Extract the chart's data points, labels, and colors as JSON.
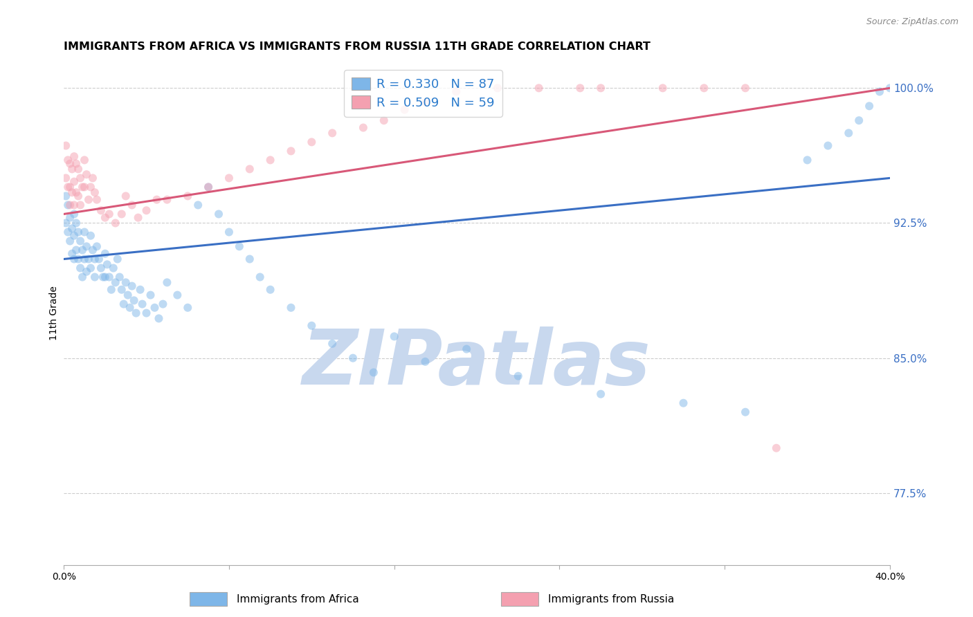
{
  "title": "IMMIGRANTS FROM AFRICA VS IMMIGRANTS FROM RUSSIA 11TH GRADE CORRELATION CHART",
  "source": "Source: ZipAtlas.com",
  "ylabel": "11th Grade",
  "xlim": [
    0.0,
    0.4
  ],
  "ylim": [
    0.735,
    1.015
  ],
  "africa_R": 0.33,
  "africa_N": 87,
  "russia_R": 0.509,
  "russia_N": 59,
  "africa_color": "#7EB6E8",
  "russia_color": "#F4A0B0",
  "africa_line_color": "#3A6FC4",
  "russia_line_color": "#D85878",
  "legend_color": "#2B7BCC",
  "background_color": "#FFFFFF",
  "africa_scatter_x": [
    0.001,
    0.001,
    0.002,
    0.002,
    0.003,
    0.003,
    0.004,
    0.004,
    0.005,
    0.005,
    0.005,
    0.006,
    0.006,
    0.007,
    0.007,
    0.008,
    0.008,
    0.009,
    0.009,
    0.01,
    0.01,
    0.011,
    0.011,
    0.012,
    0.013,
    0.013,
    0.014,
    0.015,
    0.015,
    0.016,
    0.017,
    0.018,
    0.019,
    0.02,
    0.02,
    0.021,
    0.022,
    0.023,
    0.024,
    0.025,
    0.026,
    0.027,
    0.028,
    0.029,
    0.03,
    0.031,
    0.032,
    0.033,
    0.034,
    0.035,
    0.037,
    0.038,
    0.04,
    0.042,
    0.044,
    0.046,
    0.048,
    0.05,
    0.055,
    0.06,
    0.065,
    0.07,
    0.075,
    0.08,
    0.085,
    0.09,
    0.095,
    0.1,
    0.11,
    0.12,
    0.13,
    0.14,
    0.15,
    0.16,
    0.175,
    0.195,
    0.22,
    0.26,
    0.3,
    0.33,
    0.36,
    0.37,
    0.38,
    0.385,
    0.39,
    0.395,
    0.4
  ],
  "africa_scatter_y": [
    0.94,
    0.925,
    0.935,
    0.92,
    0.928,
    0.915,
    0.922,
    0.908,
    0.93,
    0.918,
    0.905,
    0.925,
    0.91,
    0.92,
    0.905,
    0.915,
    0.9,
    0.91,
    0.895,
    0.92,
    0.905,
    0.912,
    0.898,
    0.905,
    0.918,
    0.9,
    0.91,
    0.905,
    0.895,
    0.912,
    0.905,
    0.9,
    0.895,
    0.908,
    0.895,
    0.902,
    0.895,
    0.888,
    0.9,
    0.892,
    0.905,
    0.895,
    0.888,
    0.88,
    0.892,
    0.885,
    0.878,
    0.89,
    0.882,
    0.875,
    0.888,
    0.88,
    0.875,
    0.885,
    0.878,
    0.872,
    0.88,
    0.892,
    0.885,
    0.878,
    0.935,
    0.945,
    0.93,
    0.92,
    0.912,
    0.905,
    0.895,
    0.888,
    0.878,
    0.868,
    0.858,
    0.85,
    0.842,
    0.862,
    0.848,
    0.855,
    0.84,
    0.83,
    0.825,
    0.82,
    0.96,
    0.968,
    0.975,
    0.982,
    0.99,
    0.998,
    1.0
  ],
  "russia_scatter_x": [
    0.001,
    0.001,
    0.002,
    0.002,
    0.003,
    0.003,
    0.003,
    0.004,
    0.004,
    0.005,
    0.005,
    0.005,
    0.006,
    0.006,
    0.007,
    0.007,
    0.008,
    0.008,
    0.009,
    0.01,
    0.01,
    0.011,
    0.012,
    0.013,
    0.014,
    0.015,
    0.016,
    0.018,
    0.02,
    0.022,
    0.025,
    0.028,
    0.03,
    0.033,
    0.036,
    0.04,
    0.045,
    0.05,
    0.06,
    0.07,
    0.08,
    0.09,
    0.1,
    0.11,
    0.12,
    0.13,
    0.145,
    0.155,
    0.165,
    0.175,
    0.19,
    0.21,
    0.23,
    0.25,
    0.26,
    0.29,
    0.31,
    0.33,
    0.345
  ],
  "russia_scatter_y": [
    0.968,
    0.95,
    0.96,
    0.945,
    0.958,
    0.945,
    0.935,
    0.955,
    0.942,
    0.962,
    0.948,
    0.935,
    0.958,
    0.942,
    0.955,
    0.94,
    0.95,
    0.935,
    0.945,
    0.96,
    0.945,
    0.952,
    0.938,
    0.945,
    0.95,
    0.942,
    0.938,
    0.932,
    0.928,
    0.93,
    0.925,
    0.93,
    0.94,
    0.935,
    0.928,
    0.932,
    0.938,
    0.938,
    0.94,
    0.945,
    0.95,
    0.955,
    0.96,
    0.965,
    0.97,
    0.975,
    0.978,
    0.982,
    0.988,
    0.992,
    0.998,
    1.0,
    1.0,
    1.0,
    1.0,
    1.0,
    1.0,
    1.0,
    0.8
  ],
  "africa_line_x0": 0.0,
  "africa_line_y0": 0.905,
  "africa_line_x1": 0.4,
  "africa_line_y1": 0.95,
  "russia_line_x0": 0.0,
  "russia_line_y0": 0.93,
  "russia_line_x1": 0.4,
  "russia_line_y1": 1.0,
  "marker_size": 75,
  "marker_alpha": 0.5,
  "watermark_text": "ZIPatlas",
  "watermark_color": "#C8D8EE",
  "watermark_fontsize": 80,
  "title_fontsize": 11.5,
  "axis_fontsize": 10,
  "legend_fontsize": 13,
  "right_ytick_labels": [
    "100.0%",
    "92.5%",
    "85.0%",
    "77.5%"
  ],
  "right_ytick_positions": [
    1.0,
    0.925,
    0.85,
    0.775
  ]
}
